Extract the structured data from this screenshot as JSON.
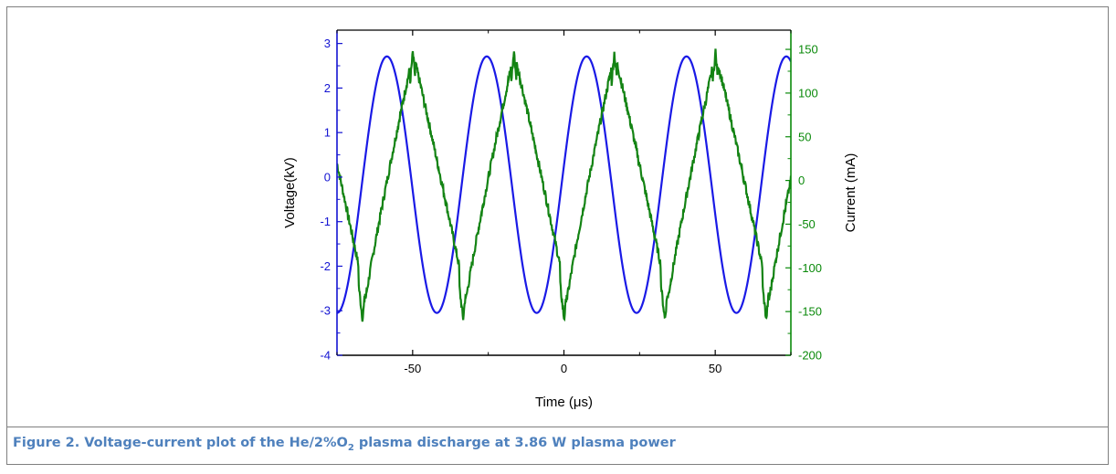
{
  "caption": {
    "prefix": "Figure 2. Voltage-current plot of the He/2%O",
    "sub": "2",
    "suffix": " plasma discharge at 3.86 W plasma power"
  },
  "chart_data": {
    "type": "line",
    "title": "",
    "xlabel": "Time (μs)",
    "ylabel_left": "Voltage(kV)",
    "ylabel_right": "Current (mA)",
    "xlim": [
      -75,
      75
    ],
    "ylim_left": [
      -4,
      3.3
    ],
    "ylim_right": [
      -200,
      172
    ],
    "x_ticks": [
      "-50",
      "0",
      "50"
    ],
    "x_tick_values": [
      -50,
      0,
      50
    ],
    "y_left_ticks": [
      "-4",
      "-3",
      "-2",
      "-1",
      "0",
      "1",
      "2",
      "3"
    ],
    "y_left_tick_values": [
      -4,
      -3,
      -2,
      -1,
      0,
      1,
      2,
      3
    ],
    "y_right_ticks": [
      "-200",
      "-150",
      "-100",
      "-50",
      "0",
      "50",
      "100",
      "150"
    ],
    "y_right_tick_values": [
      -200,
      -150,
      -100,
      -50,
      0,
      50,
      100,
      150
    ],
    "grid": false,
    "legend": "none",
    "series": [
      {
        "axis": "left",
        "unit": "kV",
        "color": "#1a1ae6",
        "x": [
          -75,
          -66.75,
          -58.5,
          -50.25,
          -42,
          -33.75,
          -25.5,
          -17.25,
          -9,
          -0.75,
          7.5,
          15.75,
          24,
          32.25,
          40.5,
          48.75,
          57,
          65.25,
          73.5,
          75
        ],
        "y": [
          -3.0,
          -0.15,
          2.7,
          -0.15,
          -3.05,
          -0.15,
          2.7,
          -0.15,
          -3.05,
          -0.15,
          2.72,
          -0.15,
          -3.05,
          -0.15,
          2.72,
          -0.15,
          -3.05,
          -0.15,
          2.72,
          2.65
        ]
      },
      {
        "axis": "right",
        "unit": "mA",
        "color": "#138313",
        "x": [
          -75,
          -68,
          -66.5,
          -49.9,
          -49.5,
          -33.3,
          -33,
          -16.5,
          -16.2,
          0.1,
          0.4,
          16.7,
          17,
          33.4,
          33.7,
          50.1,
          50.4,
          66.7,
          67,
          75
        ],
        "y": [
          -20,
          -120,
          -160,
          148,
          110,
          -120,
          -160,
          148,
          110,
          -120,
          -160,
          148,
          110,
          -120,
          -160,
          148,
          110,
          -120,
          -160,
          20
        ]
      }
    ]
  }
}
